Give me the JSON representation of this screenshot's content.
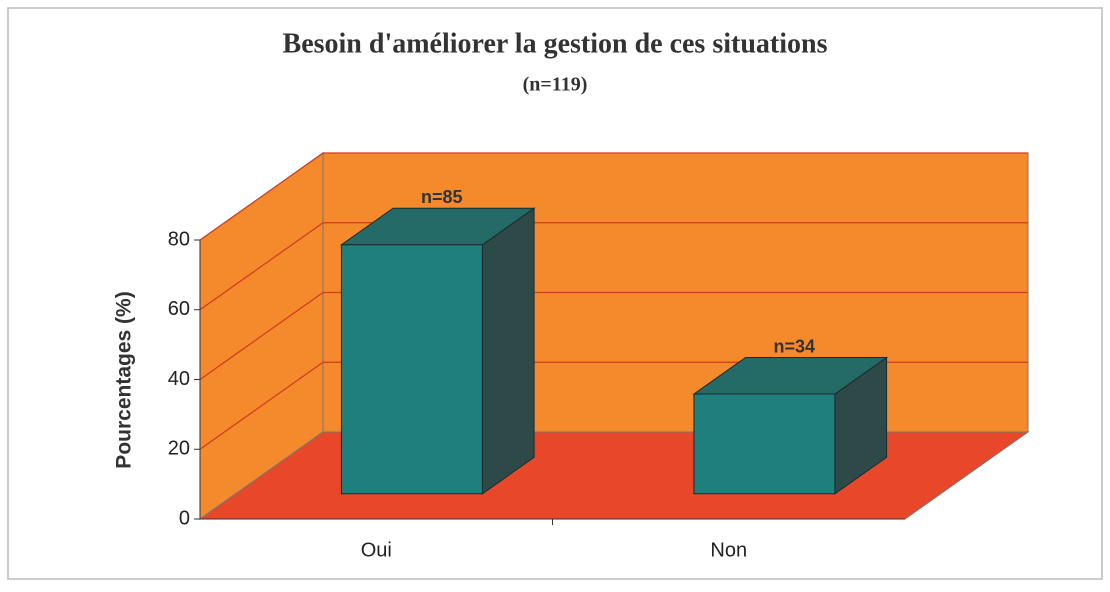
{
  "chart_data": {
    "type": "bar3d",
    "title": "Besoin d'améliorer la gestion de ces situations",
    "subtitle": "(n=119)",
    "y_label": "Pourcentages (%)",
    "categories": [
      "Oui",
      "Non"
    ],
    "values": [
      71.4,
      28.6
    ],
    "annotations": [
      "n=85",
      "n=34"
    ],
    "color": "#1f7f7c",
    "ylim": [
      0,
      80
    ],
    "yticks": [
      0,
      20,
      40,
      60,
      80
    ],
    "grid": true
  }
}
